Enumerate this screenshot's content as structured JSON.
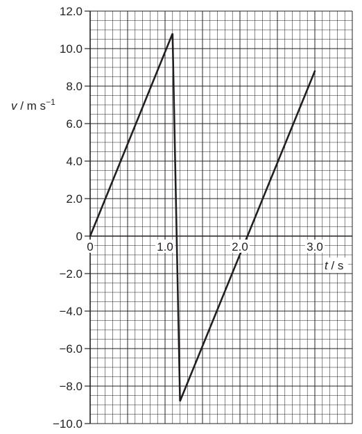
{
  "chart_data": {
    "type": "line",
    "xlabel": {
      "symbol": "t",
      "unit": "s"
    },
    "ylabel": {
      "symbol": "v",
      "unit": "m s",
      "unit_exponent": "−1"
    },
    "xlim": [
      0,
      3.5
    ],
    "ylim": [
      -10.0,
      12.0
    ],
    "grid": true,
    "x_ticks": [
      {
        "value": 0,
        "label": "0"
      },
      {
        "value": 1.0,
        "label": "1.0"
      },
      {
        "value": 2.0,
        "label": "2.0"
      },
      {
        "value": 3.0,
        "label": "3.0"
      }
    ],
    "y_ticks": [
      {
        "value": 12.0,
        "label": "12.0"
      },
      {
        "value": 10.0,
        "label": "10.0"
      },
      {
        "value": 8.0,
        "label": "8.0"
      },
      {
        "value": 6.0,
        "label": "6.0"
      },
      {
        "value": 4.0,
        "label": "4.0"
      },
      {
        "value": 2.0,
        "label": "2.0"
      },
      {
        "value": 0,
        "label": "0"
      },
      {
        "value": -2.0,
        "label": "−2.0"
      },
      {
        "value": -4.0,
        "label": "−4.0"
      },
      {
        "value": -6.0,
        "label": "−6.0"
      },
      {
        "value": -8.0,
        "label": "−8.0"
      },
      {
        "value": -10.0,
        "label": "−10.0"
      }
    ],
    "series": [
      {
        "points": [
          {
            "x": 0.0,
            "y": 0.0
          },
          {
            "x": 1.1,
            "y": 10.8
          },
          {
            "x": 1.2,
            "y": -8.8
          },
          {
            "x": 3.0,
            "y": 8.8
          }
        ]
      }
    ]
  },
  "colors": {
    "line": "#231f20",
    "grid": "#231f20",
    "background": "#ffffff"
  }
}
